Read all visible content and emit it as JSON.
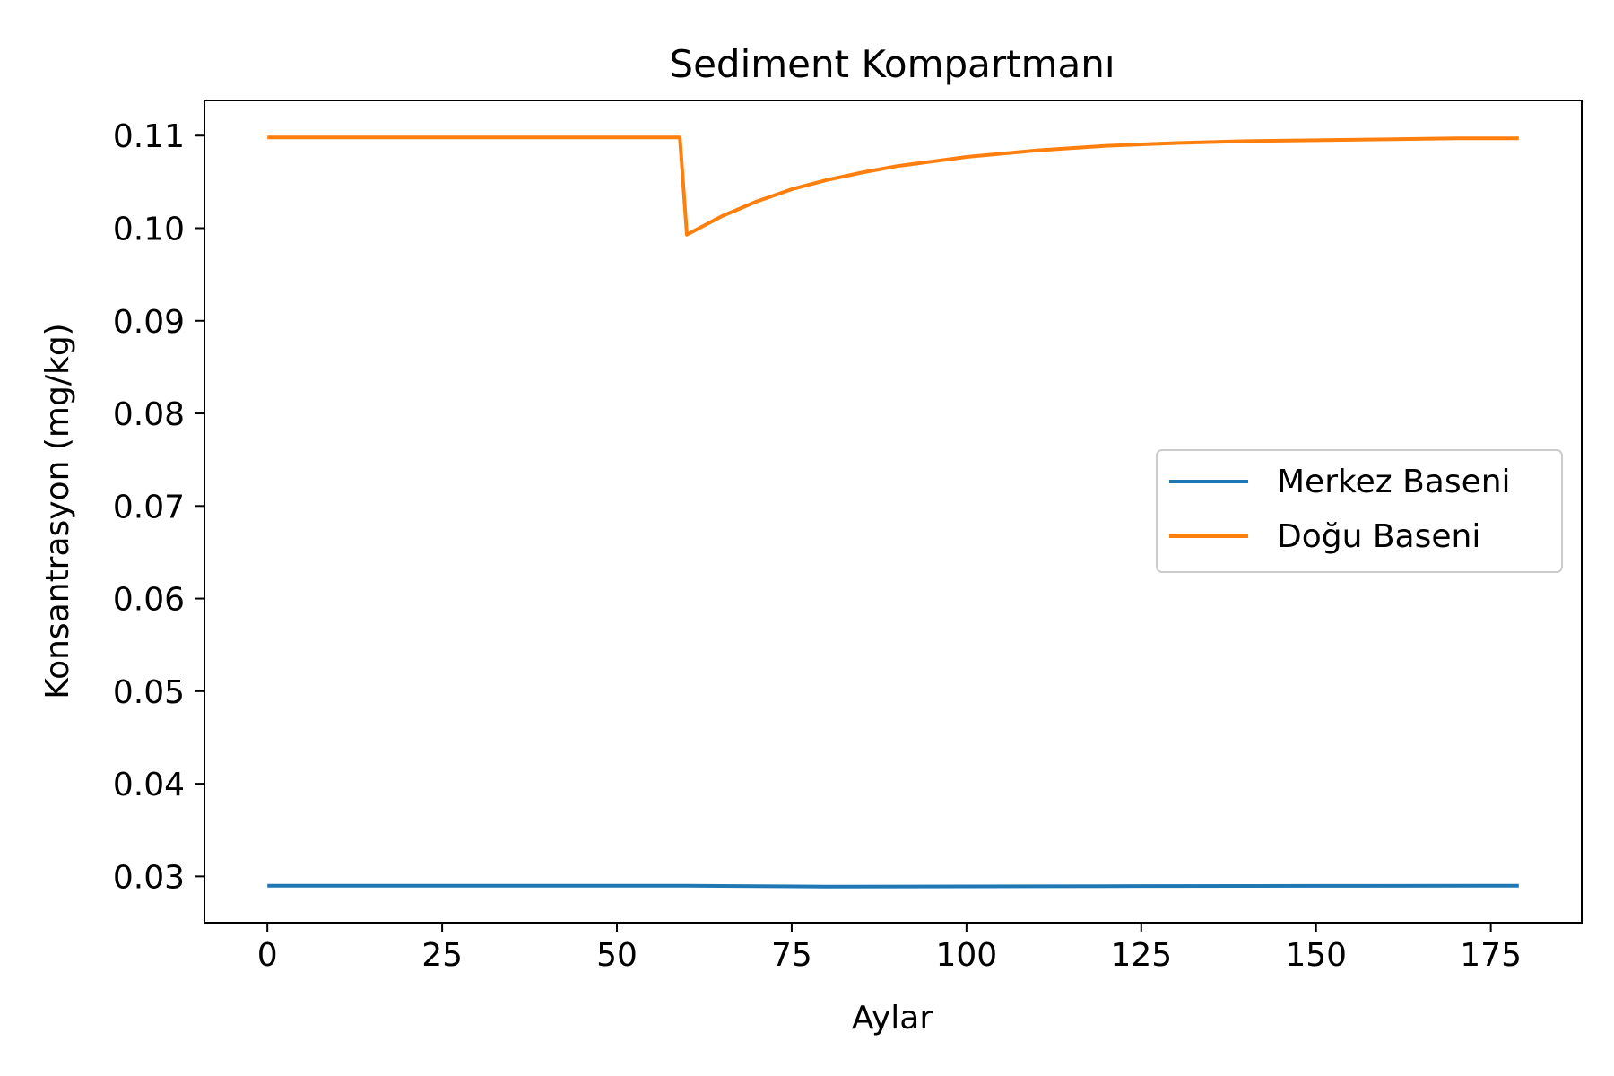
{
  "chart_data": {
    "type": "line",
    "title": "Sediment Kompartmanı",
    "xlabel": "Aylar",
    "ylabel": "Konsantrasyon (mg/kg)",
    "xlim": [
      -9,
      188
    ],
    "ylim": [
      0.025,
      0.1138
    ],
    "xticks": [
      0,
      25,
      50,
      75,
      100,
      125,
      150,
      175
    ],
    "xtick_labels": [
      "0",
      "25",
      "50",
      "75",
      "100",
      "125",
      "150",
      "175"
    ],
    "yticks": [
      0.03,
      0.04,
      0.05,
      0.06,
      0.07,
      0.08,
      0.09,
      0.1,
      0.11
    ],
    "ytick_labels": [
      "0.03",
      "0.04",
      "0.05",
      "0.06",
      "0.07",
      "0.08",
      "0.09",
      "0.10",
      "0.11"
    ],
    "grid": false,
    "legend_position": "center-right",
    "series": [
      {
        "name": "Merkez Baseni",
        "color": "#1f77b4",
        "x": [
          0,
          59,
          60,
          70,
          80,
          100,
          120,
          150,
          179
        ],
        "y": [
          0.029,
          0.029,
          0.029,
          0.02895,
          0.0289,
          0.02892,
          0.02895,
          0.02898,
          0.029
        ]
      },
      {
        "name": "Doğu Baseni",
        "color": "#ff7f0e",
        "x": [
          0,
          59,
          60,
          65,
          70,
          75,
          80,
          85,
          90,
          95,
          100,
          110,
          120,
          130,
          140,
          150,
          160,
          170,
          179
        ],
        "y": [
          0.1098,
          0.1098,
          0.0993,
          0.1013,
          0.1029,
          0.1042,
          0.1052,
          0.106,
          0.1067,
          0.1072,
          0.1077,
          0.1084,
          0.1089,
          0.1092,
          0.1094,
          0.1095,
          0.1096,
          0.1097,
          0.1097
        ]
      }
    ]
  }
}
